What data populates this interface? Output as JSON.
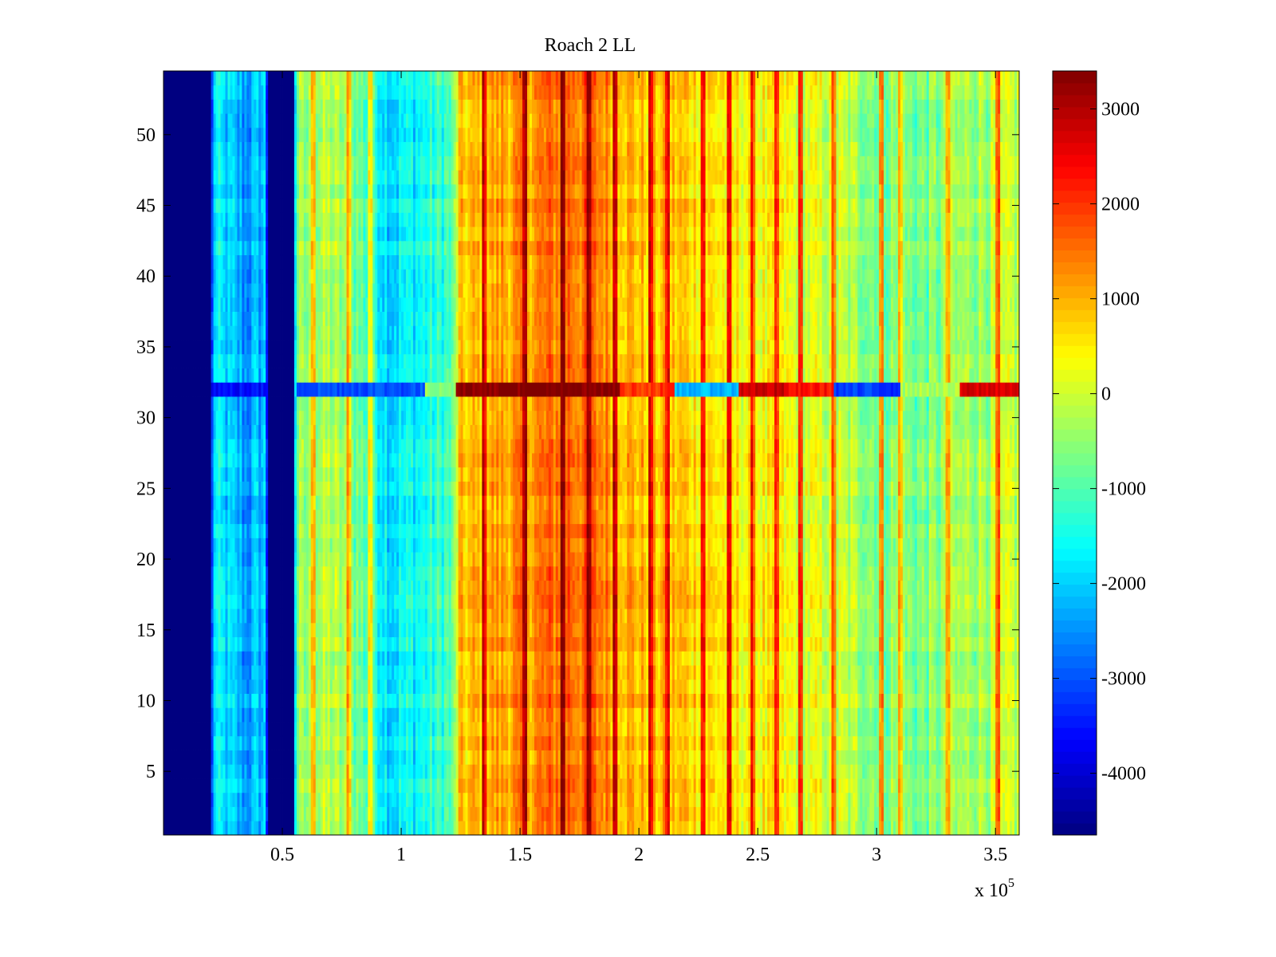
{
  "chart_data": {
    "type": "heatmap",
    "title": "Roach 2 LL",
    "xlabel": "",
    "ylabel": "",
    "x_scale_label": "x 10",
    "x_scale_exponent": "5",
    "xlim": [
      0,
      3.6
    ],
    "ylim": [
      0.5,
      54.5
    ],
    "x_ticks": [
      0.5,
      1,
      1.5,
      2,
      2.5,
      3,
      3.5
    ],
    "x_tick_labels": [
      "0.5",
      "1",
      "1.5",
      "2",
      "2.5",
      "3",
      "3.5"
    ],
    "y_ticks": [
      5,
      10,
      15,
      20,
      25,
      30,
      35,
      40,
      45,
      50
    ],
    "y_tick_labels": [
      "5",
      "10",
      "15",
      "20",
      "25",
      "30",
      "35",
      "40",
      "45",
      "50"
    ],
    "rows": 54,
    "colorbar": {
      "clim": [
        -4650,
        3400
      ],
      "ticks": [
        3000,
        2000,
        1000,
        0,
        -1000,
        -2000,
        -3000,
        -4000
      ],
      "tick_labels": [
        "3000",
        "2000",
        "1000",
        "0",
        "-1000",
        "-2000",
        "-3000",
        "-4000"
      ],
      "colormap": "jet"
    },
    "column_profile": [
      {
        "x": 0.0,
        "value": -4650
      },
      {
        "x": 0.2,
        "value": -4650
      },
      {
        "x": 0.21,
        "value": -1700
      },
      {
        "x": 0.27,
        "value": -2000
      },
      {
        "x": 0.35,
        "value": -2400
      },
      {
        "x": 0.43,
        "value": -2000
      },
      {
        "x": 0.44,
        "value": -4650
      },
      {
        "x": 0.54,
        "value": -4650
      },
      {
        "x": 0.56,
        "value": -600
      },
      {
        "x": 0.7,
        "value": -200
      },
      {
        "x": 0.85,
        "value": -900
      },
      {
        "x": 0.95,
        "value": -1800
      },
      {
        "x": 1.1,
        "value": -1500
      },
      {
        "x": 1.22,
        "value": -1000
      },
      {
        "x": 1.24,
        "value": 700
      },
      {
        "x": 1.4,
        "value": 1100
      },
      {
        "x": 1.55,
        "value": 1300
      },
      {
        "x": 1.7,
        "value": 1700
      },
      {
        "x": 1.85,
        "value": 1400
      },
      {
        "x": 2.0,
        "value": 900
      },
      {
        "x": 2.2,
        "value": 800
      },
      {
        "x": 2.4,
        "value": 500
      },
      {
        "x": 2.6,
        "value": 300
      },
      {
        "x": 2.8,
        "value": 0
      },
      {
        "x": 3.0,
        "value": -500
      },
      {
        "x": 3.2,
        "value": -700
      },
      {
        "x": 3.4,
        "value": -300
      },
      {
        "x": 3.6,
        "value": -100
      }
    ],
    "hot_stripes": [
      0.63,
      0.78,
      0.87,
      1.35,
      1.52,
      1.68,
      1.79,
      1.9,
      2.05,
      2.12,
      2.27,
      2.38,
      2.48,
      2.58,
      2.68,
      2.82,
      3.02,
      3.1,
      3.3,
      3.51
    ],
    "anomalous_row": {
      "row": 32,
      "segments": [
        {
          "x0": 0.2,
          "x1": 0.44,
          "value": -3600
        },
        {
          "x0": 0.56,
          "x1": 1.1,
          "value": -3000
        },
        {
          "x0": 1.1,
          "x1": 1.22,
          "value": -500
        },
        {
          "x0": 1.23,
          "x1": 1.92,
          "value": 3400
        },
        {
          "x0": 1.92,
          "x1": 2.15,
          "value": 2000
        },
        {
          "x0": 2.15,
          "x1": 2.42,
          "value": -2200
        },
        {
          "x0": 2.42,
          "x1": 2.62,
          "value": 2800
        },
        {
          "x0": 2.62,
          "x1": 2.82,
          "value": 2300
        },
        {
          "x0": 2.82,
          "x1": 3.1,
          "value": -3200
        },
        {
          "x0": 3.1,
          "x1": 3.35,
          "value": -300
        },
        {
          "x0": 3.35,
          "x1": 3.6,
          "value": 2700
        }
      ]
    }
  }
}
